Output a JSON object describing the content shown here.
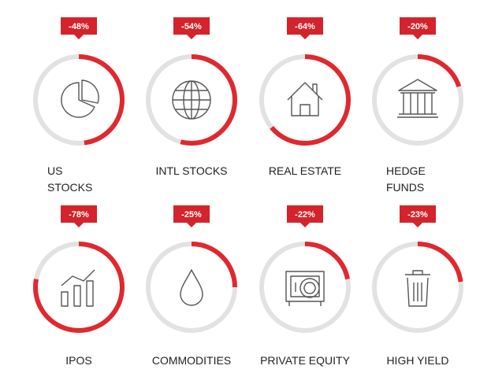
{
  "chart_data": {
    "type": "ring",
    "categories": [
      "US\nSTOCKS",
      "INTL STOCKS",
      "REAL ESTATE",
      "HEDGE\nFUNDS",
      "IPOS",
      "COMMODITIES",
      "PRIVATE EQUITY",
      "HIGH YIELD"
    ],
    "values": [
      -48,
      -54,
      -64,
      -20,
      -78,
      -25,
      -22,
      -23
    ],
    "value_labels": [
      "-48%",
      "-54%",
      "-64%",
      "-20%",
      "-78%",
      "-25%",
      "-22%",
      "-23%"
    ],
    "color": "#e0282e",
    "track_color": "#e2e2e2"
  }
}
